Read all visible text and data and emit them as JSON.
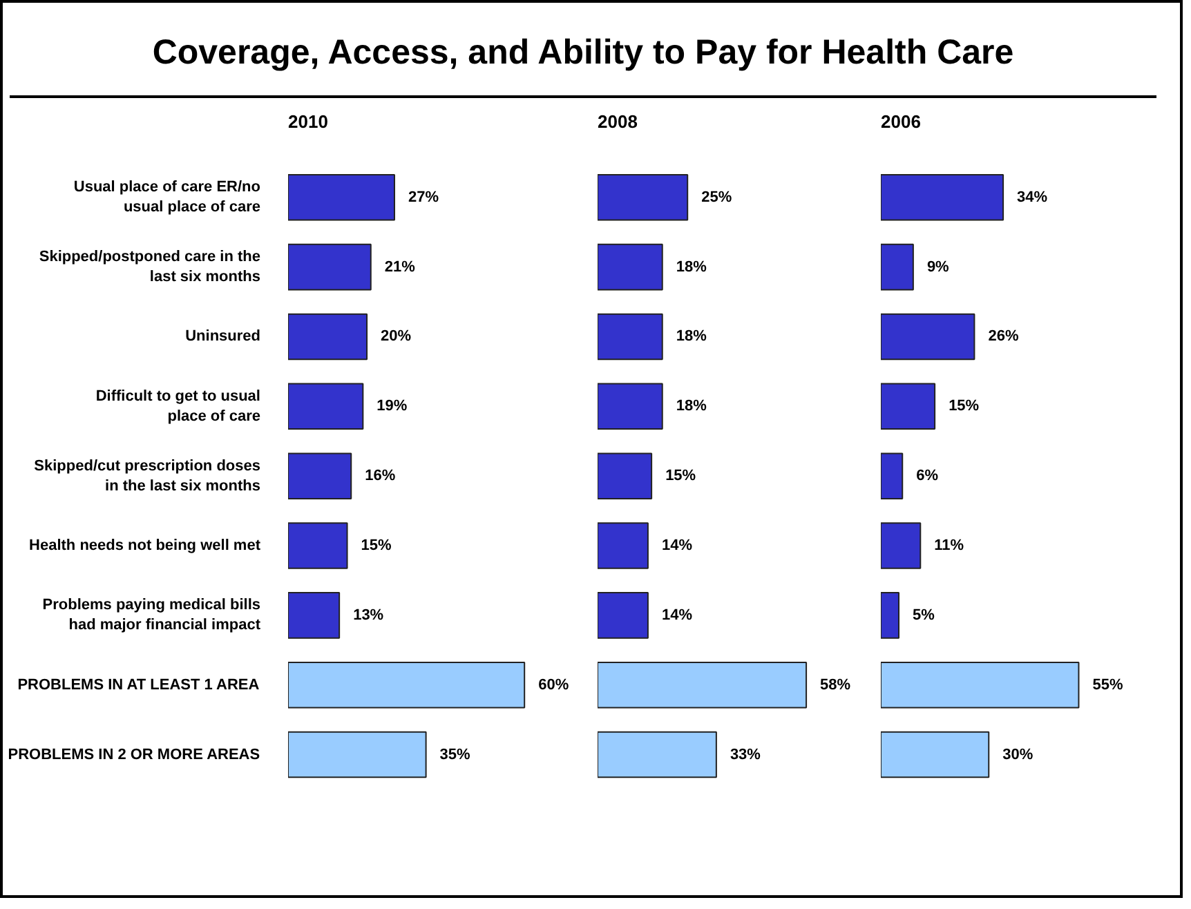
{
  "chart_data": [
    {
      "type": "bar",
      "orientation": "horizontal",
      "title": "Coverage, Access, and Ability to Pay for Health Care",
      "subtitle": "2010",
      "categories": [
        "Usual place of care ER/no usual place of care",
        "Skipped/postponed care in the last six months",
        "Uninsured",
        "Difficult to get to usual place of care",
        "Skipped/cut prescription doses in the last six months",
        "Health needs not being well met",
        "Problems paying medical bills had major financial impact",
        "PROBLEMS IN AT LEAST 1 AREA",
        "PROBLEMS IN 2 OR MORE AREAS"
      ],
      "values": [
        27,
        21,
        20,
        19,
        16,
        15,
        13,
        60,
        35
      ],
      "value_labels": [
        "27%",
        "21%",
        "20%",
        "19%",
        "16%",
        "15%",
        "13%",
        "60%",
        "35%"
      ],
      "colors": [
        "#3333cc",
        "#3333cc",
        "#3333cc",
        "#3333cc",
        "#3333cc",
        "#3333cc",
        "#3333cc",
        "#99ccff",
        "#99ccff"
      ],
      "tick_labels": "y",
      "grid": false
    },
    {
      "type": "bar",
      "orientation": "horizontal",
      "subtitle": "2008",
      "categories": [
        null,
        null,
        null,
        null,
        null,
        null,
        null,
        null,
        null
      ],
      "values": [
        25,
        18,
        18,
        18,
        15,
        14,
        14,
        58,
        33
      ],
      "value_labels": [
        "25%",
        "18%",
        "18%",
        "18%",
        "15%",
        "14%",
        "14%",
        "58%",
        "33%"
      ],
      "colors": [
        "#3333cc",
        "#3333cc",
        "#3333cc",
        "#3333cc",
        "#3333cc",
        "#3333cc",
        "#3333cc",
        "#99ccff",
        "#99ccff"
      ],
      "tick_labels": false,
      "grid": false
    },
    {
      "type": "bar",
      "orientation": "horizontal",
      "subtitle": "2006",
      "categories": [
        null,
        null,
        null,
        null,
        null,
        null,
        null,
        null,
        null
      ],
      "values": [
        34,
        9,
        26,
        15,
        6,
        11,
        5,
        55,
        30
      ],
      "value_labels": [
        "34%",
        "9%",
        "26%",
        "15%",
        "6%",
        "11%",
        "5%",
        "55%",
        "30%"
      ],
      "colors": [
        "#3333cc",
        "#3333cc",
        "#3333cc",
        "#3333cc",
        "#3333cc",
        "#3333cc",
        "#3333cc",
        "#99ccff",
        "#99ccff"
      ],
      "tick_labels": false,
      "grid": false
    }
  ]
}
